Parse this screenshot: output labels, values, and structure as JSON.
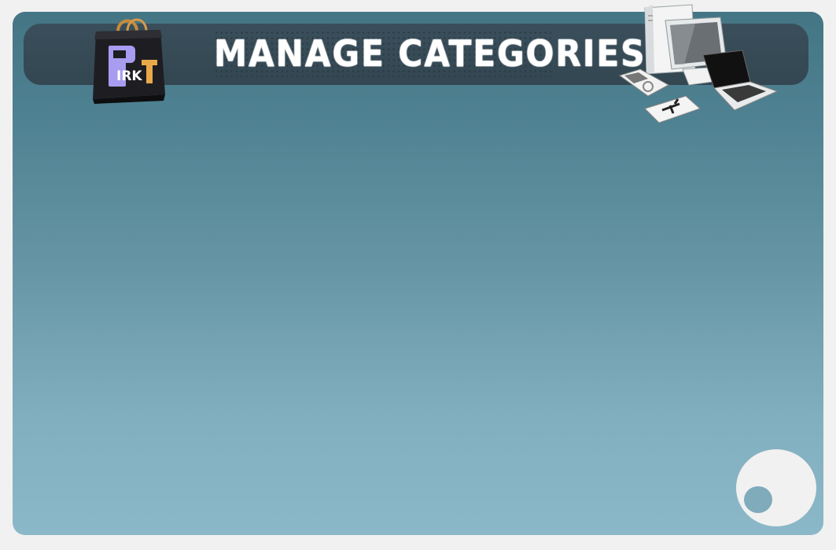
{
  "header": {
    "title": "MANAGE CATEGORIES",
    "logo_letters": [
      "P",
      "IRK",
      "T"
    ],
    "logo_icon": "shopping-bag-logo-icon",
    "devices_icon": "computer-devices-icon"
  },
  "decor": {
    "corner_icon": "circle-decoration-icon"
  },
  "colors": {
    "page_border": "#f1f1f1",
    "header_bar": "#374c57",
    "gradient_top": "#447585",
    "gradient_bottom": "#8bb8c8",
    "logo_purple": "#9b8fe0",
    "logo_orange": "#e8a94a"
  }
}
